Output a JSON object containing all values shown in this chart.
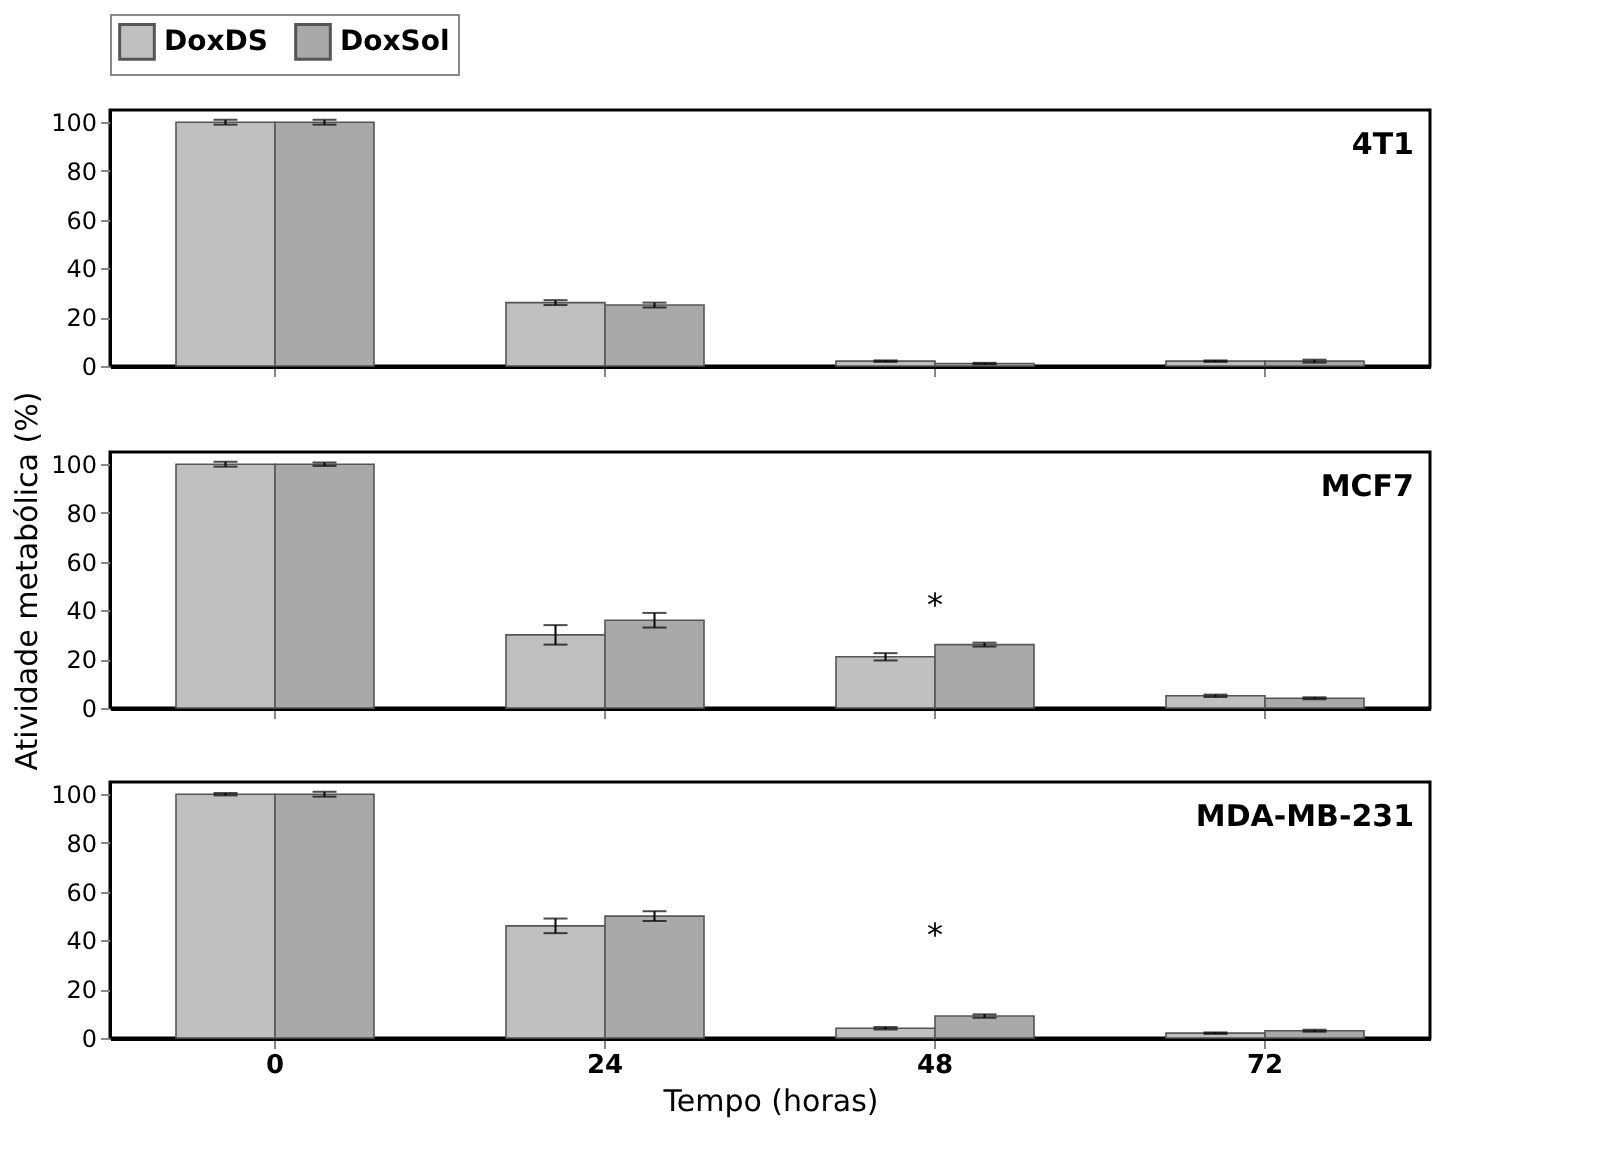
{
  "chart_data": [
    {
      "type": "bar",
      "title": "4T1",
      "categories": [
        "0",
        "24",
        "48",
        "72"
      ],
      "ylim": [
        0,
        105
      ],
      "yticks": [
        0,
        20,
        40,
        60,
        80,
        100
      ],
      "legend": "top",
      "tick_labels": "y",
      "grid": false,
      "series": [
        {
          "name": "DoxDS",
          "color": "#c0c0c0",
          "values": [
            100,
            26,
            2,
            2
          ],
          "errors": [
            1,
            1,
            0.3,
            0.3
          ]
        },
        {
          "name": "DoxSol",
          "color": "#a9a9a9",
          "values": [
            100,
            25,
            1,
            2
          ],
          "errors": [
            1,
            1,
            0.3,
            0.6
          ]
        }
      ]
    },
    {
      "type": "bar",
      "title": "MCF7",
      "ylabel": "Atividade metabólica (%)",
      "categories": [
        "0",
        "24",
        "48",
        "72"
      ],
      "ylim": [
        0,
        105
      ],
      "yticks": [
        0,
        20,
        40,
        60,
        80,
        100
      ],
      "legend": false,
      "tick_labels": "y",
      "grid": false,
      "annotations": [
        "*"
      ],
      "series": [
        {
          "name": "DoxDS",
          "color": "#c0c0c0",
          "values": [
            100,
            30,
            21,
            5
          ],
          "errors": [
            1,
            4,
            1.5,
            0.5
          ]
        },
        {
          "name": "DoxSol",
          "color": "#a9a9a9",
          "values": [
            100,
            36,
            26,
            4
          ],
          "errors": [
            0.7,
            3,
            0.8,
            0.4
          ]
        }
      ]
    },
    {
      "type": "bar",
      "title": "MDA-MB-231",
      "xlabel": "Tempo (horas)",
      "categories": [
        "0",
        "24",
        "48",
        "72"
      ],
      "ylim": [
        0,
        105
      ],
      "yticks": [
        0,
        20,
        40,
        60,
        80,
        100
      ],
      "legend": false,
      "grid": false,
      "annotations": [
        "*"
      ],
      "series": [
        {
          "name": "DoxDS",
          "color": "#c0c0c0",
          "values": [
            100,
            46,
            4,
            2
          ],
          "errors": [
            0.5,
            3,
            0.5,
            0.3
          ]
        },
        {
          "name": "DoxSol",
          "color": "#a9a9a9",
          "values": [
            100,
            50,
            9,
            3
          ],
          "errors": [
            1,
            2,
            0.7,
            0.4
          ]
        }
      ]
    }
  ]
}
